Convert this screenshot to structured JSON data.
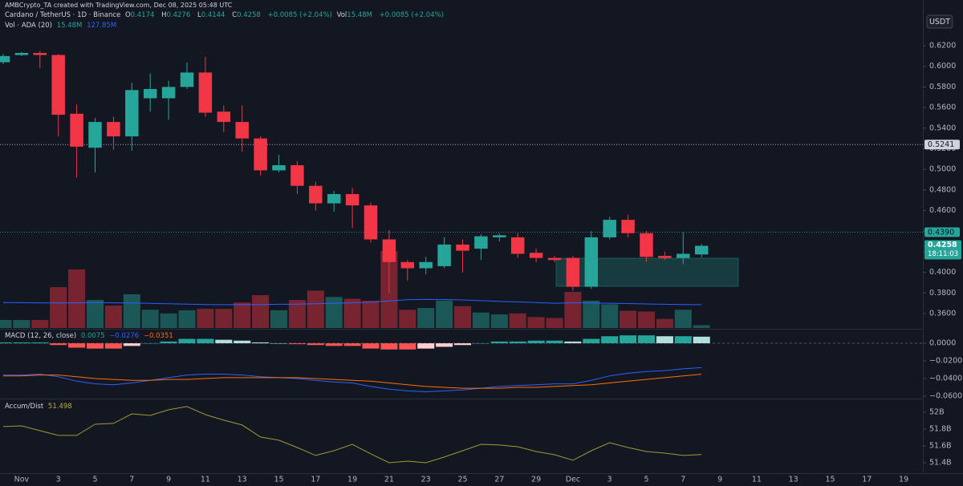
{
  "header": {
    "credit": "AMBCrypto_TA created with TradingView.com, Dec 08, 2025 05:48 UTC",
    "symbol": "Cardano / TetherUS · 1D · Binance",
    "ohlc_labels": [
      "O",
      "H",
      "L",
      "C"
    ],
    "change": "+0.0085 (+2.04%)",
    "vol_label": "Vol",
    "vol_value": "15.48M",
    "vol_change": "+0.0085 (+2.04%)",
    "vol_study": "Vol · ADA (20)",
    "vol_study_values": [
      "15.48M",
      "127.85M"
    ],
    "currency": "USDT",
    "countdown": "18:11:03"
  },
  "chart_data": [
    {
      "type": "candlestick",
      "up_color": "#26a69a",
      "down_color": "#f23645",
      "x": [
        "2025-10-31",
        "2025-11-01",
        "2025-11-02",
        "2025-11-03",
        "2025-11-04",
        "2025-11-05",
        "2025-11-06",
        "2025-11-07",
        "2025-11-08",
        "2025-11-09",
        "2025-11-10",
        "2025-11-11",
        "2025-11-12",
        "2025-11-13",
        "2025-11-14",
        "2025-11-15",
        "2025-11-16",
        "2025-11-17",
        "2025-11-18",
        "2025-11-19",
        "2025-11-20",
        "2025-11-21",
        "2025-11-22",
        "2025-11-23",
        "2025-11-24",
        "2025-11-25",
        "2025-11-26",
        "2025-11-27",
        "2025-11-28",
        "2025-11-29",
        "2025-11-30",
        "2025-12-01",
        "2025-12-02",
        "2025-12-03",
        "2025-12-04",
        "2025-12-05",
        "2025-12-06",
        "2025-12-07",
        "2025-12-08"
      ],
      "open": [
        0.604,
        0.611,
        0.613,
        0.611,
        0.554,
        0.521,
        0.546,
        0.532,
        0.569,
        0.569,
        0.58,
        0.594,
        0.556,
        0.546,
        0.53,
        0.499,
        0.504,
        0.484,
        0.467,
        0.476,
        0.465,
        0.432,
        0.41,
        0.404,
        0.406,
        0.427,
        0.423,
        0.434,
        0.434,
        0.419,
        0.414,
        0.414,
        0.386,
        0.434,
        0.451,
        0.438,
        0.416,
        0.414,
        0.4174
      ],
      "high": [
        0.612,
        0.614,
        0.615,
        0.612,
        0.563,
        0.55,
        0.551,
        0.584,
        0.593,
        0.586,
        0.604,
        0.609,
        0.562,
        0.562,
        0.532,
        0.514,
        0.508,
        0.488,
        0.479,
        0.482,
        0.468,
        0.441,
        0.412,
        0.415,
        0.434,
        0.432,
        0.437,
        0.438,
        0.438,
        0.423,
        0.416,
        0.416,
        0.44,
        0.454,
        0.456,
        0.44,
        0.42,
        0.439,
        0.4276
      ],
      "low": [
        0.602,
        0.61,
        0.598,
        0.532,
        0.492,
        0.497,
        0.519,
        0.518,
        0.556,
        0.548,
        0.578,
        0.551,
        0.536,
        0.517,
        0.494,
        0.497,
        0.476,
        0.46,
        0.459,
        0.443,
        0.429,
        0.38,
        0.392,
        0.398,
        0.404,
        0.4,
        0.412,
        0.43,
        0.414,
        0.41,
        0.41,
        0.382,
        0.384,
        0.432,
        0.434,
        0.41,
        0.412,
        0.408,
        0.4144
      ],
      "close": [
        0.61,
        0.613,
        0.611,
        0.553,
        0.522,
        0.546,
        0.532,
        0.577,
        0.578,
        0.58,
        0.594,
        0.555,
        0.546,
        0.53,
        0.499,
        0.504,
        0.484,
        0.467,
        0.476,
        0.465,
        0.432,
        0.41,
        0.404,
        0.41,
        0.427,
        0.421,
        0.435,
        0.436,
        0.418,
        0.414,
        0.412,
        0.386,
        0.434,
        0.451,
        0.438,
        0.415,
        0.414,
        0.418,
        0.4258
      ],
      "volume": [
        44,
        44,
        44,
        224,
        321,
        154,
        123,
        185,
        100,
        80,
        97,
        105,
        105,
        140,
        180,
        97,
        154,
        205,
        170,
        160,
        150,
        422,
        100,
        110,
        150,
        120,
        85,
        75,
        80,
        60,
        55,
        198,
        150,
        130,
        95,
        90,
        50,
        100,
        15.48
      ],
      "volume_ma": [
        140,
        139,
        138,
        137,
        138,
        140,
        138,
        137,
        135,
        133,
        131,
        129,
        128,
        128,
        129,
        130,
        131,
        133,
        136,
        138,
        141,
        148,
        155,
        157,
        156,
        154,
        150,
        146,
        143,
        140,
        136,
        138,
        138,
        136,
        134,
        132,
        130,
        129,
        127.85
      ],
      "volume_ma_color": "#2962ff",
      "xlim": [
        "2025-10-31",
        "2025-12-20"
      ],
      "xticks": [
        {
          "value": "2025-11-01",
          "label": "Nov"
        },
        {
          "value": "2025-11-03",
          "label": "3"
        },
        {
          "value": "2025-11-05",
          "label": "5"
        },
        {
          "value": "2025-11-07",
          "label": "7"
        },
        {
          "value": "2025-11-09",
          "label": "9"
        },
        {
          "value": "2025-11-11",
          "label": "11"
        },
        {
          "value": "2025-11-13",
          "label": "13"
        },
        {
          "value": "2025-11-15",
          "label": "15"
        },
        {
          "value": "2025-11-17",
          "label": "17"
        },
        {
          "value": "2025-11-19",
          "label": "19"
        },
        {
          "value": "2025-11-21",
          "label": "21"
        },
        {
          "value": "2025-11-23",
          "label": "23"
        },
        {
          "value": "2025-11-25",
          "label": "25"
        },
        {
          "value": "2025-11-27",
          "label": "27"
        },
        {
          "value": "2025-11-29",
          "label": "29"
        },
        {
          "value": "2025-12-01",
          "label": "Dec"
        },
        {
          "value": "2025-12-03",
          "label": "3"
        },
        {
          "value": "2025-12-05",
          "label": "5"
        },
        {
          "value": "2025-12-07",
          "label": "7"
        },
        {
          "value": "2025-12-09",
          "label": "9"
        },
        {
          "value": "2025-12-11",
          "label": "11"
        },
        {
          "value": "2025-12-13",
          "label": "13"
        },
        {
          "value": "2025-12-15",
          "label": "15"
        },
        {
          "value": "2025-12-17",
          "label": "17"
        },
        {
          "value": "2025-12-19",
          "label": "19"
        }
      ],
      "ylim": [
        0.3452,
        0.6644
      ],
      "yticks": [
        {
          "value": 0.62,
          "label": "0.6200"
        },
        {
          "value": 0.6,
          "label": "0.6000"
        },
        {
          "value": 0.58,
          "label": "0.5800"
        },
        {
          "value": 0.56,
          "label": "0.5600"
        },
        {
          "value": 0.54,
          "label": "0.5400"
        },
        {
          "value": 0.52,
          "label": "0.5200"
        },
        {
          "value": 0.5,
          "label": "0.5000"
        },
        {
          "value": 0.48,
          "label": "0.4800"
        },
        {
          "value": 0.46,
          "label": "0.4600"
        },
        {
          "value": 0.44,
          "label": "0.4400"
        },
        {
          "value": 0.42,
          "label": "0.4200"
        },
        {
          "value": 0.4,
          "label": "0.4000"
        },
        {
          "value": 0.38,
          "label": "0.3800"
        },
        {
          "value": 0.36,
          "label": "0.3600"
        }
      ],
      "price_lines": [
        {
          "value": 0.5241,
          "label": "0.5241",
          "color": "#d1d4dc"
        },
        {
          "value": 0.439,
          "label": "0.4390",
          "color": "#26a69a"
        }
      ]
    },
    {
      "type": "macd",
      "title": "MACD (12, 26, close)",
      "legend_labels": [
        "0.0075",
        "−0.0276",
        "−0.0351"
      ],
      "macd_color": "#2962ff",
      "signal_color": "#ff6d00",
      "histogram": [
        0.001,
        0.001,
        0.001,
        -0.002,
        -0.005,
        -0.006,
        -0.006,
        -0.003,
        0.0,
        0.002,
        0.005,
        0.005,
        0.004,
        0.003,
        0.001,
        0.0,
        -0.001,
        -0.002,
        -0.003,
        -0.003,
        -0.006,
        -0.007,
        -0.007,
        -0.006,
        -0.004,
        -0.002,
        0.0,
        0.002,
        0.002,
        0.003,
        0.003,
        0.002,
        0.005,
        0.008,
        0.009,
        0.009,
        0.008,
        0.008,
        0.0075
      ],
      "macd": [
        -0.036,
        -0.036,
        -0.035,
        -0.038,
        -0.043,
        -0.046,
        -0.047,
        -0.045,
        -0.042,
        -0.039,
        -0.036,
        -0.035,
        -0.035,
        -0.036,
        -0.038,
        -0.039,
        -0.04,
        -0.042,
        -0.044,
        -0.045,
        -0.049,
        -0.052,
        -0.054,
        -0.055,
        -0.054,
        -0.053,
        -0.051,
        -0.049,
        -0.048,
        -0.047,
        -0.046,
        -0.046,
        -0.042,
        -0.037,
        -0.034,
        -0.032,
        -0.031,
        -0.029,
        -0.0276
      ],
      "signal": [
        -0.037,
        -0.037,
        -0.036,
        -0.036,
        -0.038,
        -0.04,
        -0.041,
        -0.042,
        -0.042,
        -0.041,
        -0.041,
        -0.04,
        -0.039,
        -0.039,
        -0.039,
        -0.039,
        -0.039,
        -0.04,
        -0.041,
        -0.042,
        -0.043,
        -0.045,
        -0.047,
        -0.049,
        -0.05,
        -0.051,
        -0.051,
        -0.051,
        -0.05,
        -0.05,
        -0.049,
        -0.048,
        -0.047,
        -0.045,
        -0.043,
        -0.041,
        -0.039,
        -0.037,
        -0.0351
      ],
      "ylim": [
        -0.0627,
        0.0155
      ],
      "yticks": [
        {
          "value": 0,
          "label": "0.0000"
        },
        {
          "value": -0.02,
          "label": "−0.0200"
        },
        {
          "value": -0.04,
          "label": "−0.0400"
        },
        {
          "value": -0.06,
          "label": "−0.0600"
        }
      ]
    },
    {
      "type": "line",
      "title": "Accum/Dist",
      "value_label": "51.498",
      "color": "#9e9a35",
      "values": [
        51.829,
        51.838,
        51.781,
        51.724,
        51.724,
        51.857,
        51.867,
        51.981,
        51.962,
        52.029,
        52.067,
        51.971,
        51.905,
        51.848,
        51.705,
        51.667,
        51.581,
        51.486,
        51.543,
        51.619,
        51.505,
        51.4,
        51.419,
        51.4,
        51.467,
        51.543,
        51.619,
        51.61,
        51.59,
        51.533,
        51.495,
        51.429,
        51.543,
        51.638,
        51.581,
        51.533,
        51.514,
        51.486,
        51.498
      ],
      "ylim": [
        51.276,
        52.152
      ],
      "yticks": [
        {
          "value": 52,
          "label": "52B"
        },
        {
          "value": 51.8,
          "label": "51.8B"
        },
        {
          "value": 51.6,
          "label": "51.6B"
        },
        {
          "value": 51.4,
          "label": "51.4B"
        }
      ]
    }
  ]
}
